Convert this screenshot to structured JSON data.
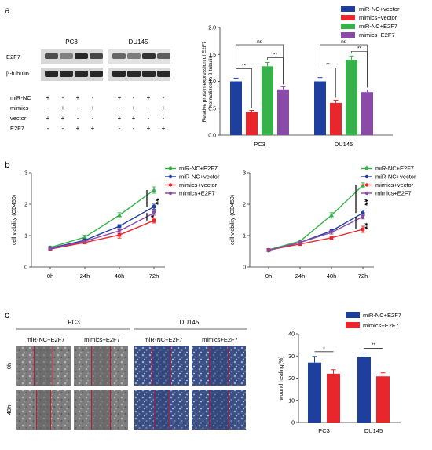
{
  "panels": {
    "a": "a",
    "b": "b",
    "c": "c"
  },
  "western": {
    "groups": [
      "PC3",
      "DU145"
    ],
    "rows": [
      "E2F7",
      "β-tubulin"
    ],
    "conditions": [
      {
        "label": "miR-NC",
        "signs": [
          "+",
          "-",
          "+",
          "-",
          "+",
          "-",
          "+",
          "-"
        ]
      },
      {
        "label": "mimics",
        "signs": [
          "-",
          "+",
          "-",
          "+",
          "-",
          "+",
          "-",
          "+"
        ]
      },
      {
        "label": "vector",
        "signs": [
          "+",
          "+",
          "-",
          "-",
          "+",
          "+",
          "-",
          "-"
        ]
      },
      {
        "label": "E2F7",
        "signs": [
          "-",
          "-",
          "+",
          "+",
          "-",
          "-",
          "+",
          "+"
        ]
      }
    ]
  },
  "colors": {
    "blue": "#1f3f9f",
    "red": "#e8262b",
    "green": "#37b24a",
    "purple": "#8a4aa8"
  },
  "chart_data": [
    {
      "type": "bar",
      "ylabel": "Relative protein expression of E2F7 normalized to β-tubulin",
      "categories": [
        "PC3",
        "DU145"
      ],
      "ylim": [
        0,
        2.0
      ],
      "yticks": [
        "0.0",
        "0.5",
        "1.0",
        "1.5",
        "2.0"
      ],
      "legend": [
        "miR-NC+vector",
        "mimics+vector",
        "miR-NC+E2F7",
        "mimics+E2F7"
      ],
      "series": [
        {
          "name": "miR-NC+vector",
          "values": [
            1.0,
            1.0
          ],
          "err": [
            0.06,
            0.07
          ]
        },
        {
          "name": "mimics+vector",
          "values": [
            0.43,
            0.6
          ],
          "err": [
            0.03,
            0.05
          ]
        },
        {
          "name": "miR-NC+E2F7",
          "values": [
            1.28,
            1.4
          ],
          "err": [
            0.07,
            0.07
          ]
        },
        {
          "name": "mimics+E2F7",
          "values": [
            0.85,
            0.8
          ],
          "err": [
            0.05,
            0.04
          ]
        }
      ],
      "annotations": [
        "**",
        "**",
        "ns",
        "**",
        "**",
        "ns"
      ]
    },
    {
      "type": "line",
      "ylabel": "cell viability (OD450)",
      "x": [
        "0h",
        "24h",
        "48h",
        "72h"
      ],
      "ylim": [
        0,
        3
      ],
      "yticks": [
        "0",
        "1",
        "2",
        "3"
      ],
      "legend": [
        "miR-NC+E2F7",
        "miR-NC+vector",
        "mimics+vector",
        "mimics+E2F7"
      ],
      "series": [
        {
          "name": "miR-NC+E2F7",
          "values": [
            0.62,
            0.95,
            1.65,
            2.45
          ],
          "err": [
            0.04,
            0.06,
            0.08,
            0.1
          ]
        },
        {
          "name": "miR-NC+vector",
          "values": [
            0.6,
            0.85,
            1.3,
            1.92
          ],
          "err": [
            0.03,
            0.05,
            0.05,
            0.08
          ]
        },
        {
          "name": "mimics+vector",
          "values": [
            0.57,
            0.78,
            1.02,
            1.48
          ],
          "err": [
            0.03,
            0.04,
            0.1,
            0.08
          ]
        },
        {
          "name": "mimics+E2F7",
          "values": [
            0.58,
            0.82,
            1.15,
            1.72
          ],
          "err": [
            0.03,
            0.04,
            0.05,
            0.07
          ]
        }
      ],
      "annotations": [
        "**",
        "*"
      ]
    },
    {
      "type": "line",
      "ylabel": "cell viability (OD450)",
      "x": [
        "0h",
        "24h",
        "48h",
        "72h"
      ],
      "ylim": [
        0,
        3
      ],
      "yticks": [
        "0",
        "1",
        "2",
        "3"
      ],
      "legend": [
        "miR-NC+E2F7",
        "miR-NC+vector",
        "mimics+vector",
        "mimics+E2F7"
      ],
      "series": [
        {
          "name": "miR-NC+E2F7",
          "values": [
            0.55,
            0.82,
            1.65,
            2.6
          ],
          "err": [
            0.03,
            0.04,
            0.08,
            0.08
          ]
        },
        {
          "name": "miR-NC+vector",
          "values": [
            0.53,
            0.78,
            1.15,
            1.72
          ],
          "err": [
            0.03,
            0.04,
            0.05,
            0.09
          ]
        },
        {
          "name": "mimics+vector",
          "values": [
            0.54,
            0.73,
            0.93,
            1.2
          ],
          "err": [
            0.03,
            0.04,
            0.05,
            0.1
          ]
        },
        {
          "name": "mimics+E2F7",
          "values": [
            0.53,
            0.78,
            1.1,
            1.6
          ],
          "err": [
            0.03,
            0.04,
            0.05,
            0.07
          ]
        }
      ],
      "annotations": [
        "**",
        "**"
      ]
    },
    {
      "type": "bar",
      "ylabel": "wound healing(%)",
      "categories": [
        "PC3",
        "DU145"
      ],
      "ylim": [
        0,
        40
      ],
      "yticks": [
        "0",
        "10",
        "20",
        "30",
        "40"
      ],
      "legend": [
        "miR-NC+E2F7",
        "mimics+E2F7"
      ],
      "series": [
        {
          "name": "miR-NC+E2F7",
          "values": [
            27.0,
            29.5
          ],
          "err": [
            2.8,
            1.8
          ]
        },
        {
          "name": "mimics+E2F7",
          "values": [
            22.0,
            20.8
          ],
          "err": [
            1.8,
            1.6
          ]
        }
      ],
      "annotations": [
        "*",
        "**"
      ]
    }
  ],
  "wound": {
    "groups": [
      "PC3",
      "DU145"
    ],
    "columns": [
      "miR-NC+E2F7",
      "mimics+E2F7",
      "miR-NC+E2F7",
      "mimics+E2F7"
    ],
    "rows": [
      "0h",
      "48h"
    ]
  }
}
